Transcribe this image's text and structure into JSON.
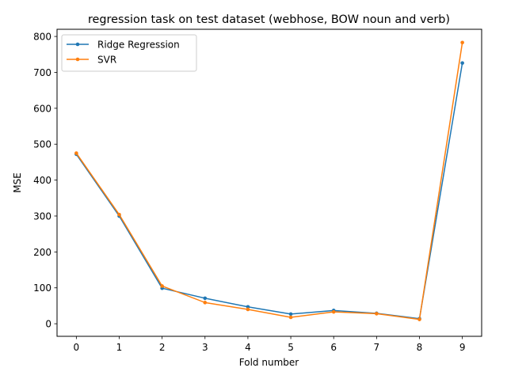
{
  "colors": {
    "ridge": "#1f77b4",
    "svr": "#ff7f0e",
    "axis": "#000000",
    "legend_border": "#cccccc"
  },
  "chart_data": {
    "type": "line",
    "title": "regression task on test dataset (webhose, BOW noun and verb)",
    "xlabel": "Fold number",
    "ylabel": "MSE",
    "x": [
      0,
      1,
      2,
      3,
      4,
      5,
      6,
      7,
      8,
      9
    ],
    "x_ticks": [
      "0",
      "1",
      "2",
      "3",
      "4",
      "5",
      "6",
      "7",
      "8",
      "9"
    ],
    "y_ticks": [
      "0",
      "100",
      "200",
      "300",
      "400",
      "500",
      "600",
      "700",
      "800"
    ],
    "xlim": [
      -0.45,
      9.45
    ],
    "ylim": [
      -35,
      820
    ],
    "grid": false,
    "legend_position": "upper left",
    "series": [
      {
        "name": "Ridge Regression",
        "color": "#1f77b4",
        "marker": "circle",
        "values": [
          472,
          300,
          99,
          71,
          47,
          27,
          37,
          29,
          14,
          726
        ]
      },
      {
        "name": "SVR",
        "color": "#ff7f0e",
        "marker": "circle",
        "values": [
          475,
          304,
          105,
          59,
          40,
          18,
          33,
          28,
          12,
          783
        ]
      }
    ]
  }
}
